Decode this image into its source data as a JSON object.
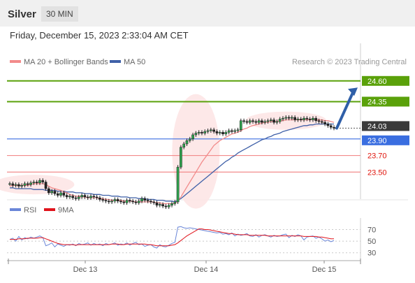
{
  "header": {
    "title": "Silver",
    "timeframe": "30 MIN"
  },
  "datetime": "Friday, December 15, 2023 2:33:04 AM CET",
  "copyright": "Research © 2023 Trading Central",
  "colors": {
    "resistance": "#5aa10a",
    "support": "#f28b8b",
    "support_text": "#e0140b",
    "ma20": "#f28b8b",
    "ma50": "#3f60a8",
    "pivot": "#3a6ee0",
    "last": "#3a3a3a",
    "arrow": "#2f5fa8",
    "candle": "#222222",
    "candle_up": "#2fa44f",
    "rsi": "#6a86d8",
    "rsi_ma": "#e0141c"
  },
  "chart_data": [
    {
      "type": "line",
      "name": "price",
      "legend": [
        {
          "name": "MA 20 + Bollinger Bands",
          "color": "#f28b8b"
        },
        {
          "name": "MA 50",
          "color": "#3f60a8"
        }
      ],
      "x_labels": [
        "Dec 13",
        "Dec 14",
        "Dec 15"
      ],
      "ylim": [
        23.3,
        24.75
      ],
      "levels": [
        {
          "label": "24.60",
          "value": 24.6,
          "role": "resistance"
        },
        {
          "label": "24.35",
          "value": 24.35,
          "role": "resistance"
        },
        {
          "label": "24.03",
          "value": 24.03,
          "role": "last"
        },
        {
          "label": "23.90",
          "value": 23.9,
          "role": "pivot"
        },
        {
          "label": "23.70",
          "value": 23.7,
          "role": "support"
        },
        {
          "label": "23.50",
          "value": 23.5,
          "role": "support"
        }
      ],
      "close_series": [
        23.36,
        23.34,
        23.35,
        23.33,
        23.34,
        23.36,
        23.35,
        23.37,
        23.38,
        23.37,
        23.4,
        23.38,
        23.3,
        23.25,
        23.27,
        23.24,
        23.22,
        23.25,
        23.22,
        23.2,
        23.21,
        23.19,
        23.18,
        23.2,
        23.22,
        23.2,
        23.19,
        23.21,
        23.2,
        23.19,
        23.17,
        23.16,
        23.15,
        23.14,
        23.15,
        23.17,
        23.15,
        23.14,
        23.13,
        23.16,
        23.15,
        23.14,
        23.13,
        23.15,
        23.18,
        23.16,
        23.15,
        23.14,
        23.13,
        23.1,
        23.11,
        23.09,
        23.08,
        23.1,
        23.12,
        23.14,
        23.56,
        23.8,
        23.84,
        23.88,
        23.9,
        23.95,
        23.97,
        23.98,
        23.97,
        23.99,
        24.0,
        24.01,
        23.99,
        23.97,
        23.98,
        23.96,
        23.98,
        24.0,
        23.99,
        24.0,
        24.01,
        24.12,
        24.11,
        24.1,
        24.12,
        24.11,
        24.1,
        24.12,
        24.1,
        24.11,
        24.12,
        24.13,
        24.1,
        24.11,
        24.14,
        24.15,
        24.16,
        24.15,
        24.16,
        24.13,
        24.14,
        24.13,
        24.15,
        24.14,
        24.13,
        24.15,
        24.12,
        24.11,
        24.1,
        24.08,
        24.06,
        24.04,
        24.03
      ],
      "ma20_series": [
        23.33,
        23.34,
        23.34,
        23.34,
        23.34,
        23.34,
        23.34,
        23.35,
        23.36,
        23.36,
        23.36,
        23.36,
        23.35,
        23.33,
        23.31,
        23.3,
        23.29,
        23.28,
        23.26,
        23.25,
        23.23,
        23.22,
        23.21,
        23.21,
        23.2,
        23.2,
        23.19,
        23.19,
        23.19,
        23.19,
        23.18,
        23.18,
        23.17,
        23.17,
        23.16,
        23.16,
        23.16,
        23.16,
        23.15,
        23.15,
        23.15,
        23.15,
        23.14,
        23.14,
        23.14,
        23.14,
        23.14,
        23.14,
        23.14,
        23.13,
        23.13,
        23.12,
        23.12,
        23.12,
        23.12,
        23.12,
        23.15,
        23.2,
        23.26,
        23.32,
        23.38,
        23.44,
        23.5,
        23.56,
        23.62,
        23.67,
        23.72,
        23.77,
        23.82,
        23.85,
        23.88,
        23.9,
        23.92,
        23.94,
        23.96,
        23.97,
        23.98,
        24.0,
        24.02,
        24.03,
        24.05,
        24.06,
        24.07,
        24.08,
        24.09,
        24.1,
        24.1,
        24.11,
        24.11,
        24.11,
        24.12,
        24.12,
        24.13,
        24.13,
        24.13,
        24.13,
        24.13,
        24.13,
        24.13,
        24.13,
        24.13,
        24.14,
        24.13,
        24.13,
        24.13,
        24.12,
        24.12,
        24.11,
        24.1
      ],
      "ma50_series": [
        23.31,
        23.31,
        23.3,
        23.3,
        23.3,
        23.3,
        23.3,
        23.3,
        23.29,
        23.29,
        23.29,
        23.29,
        23.28,
        23.28,
        23.28,
        23.28,
        23.27,
        23.27,
        23.27,
        23.26,
        23.26,
        23.26,
        23.25,
        23.25,
        23.25,
        23.24,
        23.24,
        23.24,
        23.23,
        23.23,
        23.23,
        23.22,
        23.22,
        23.22,
        23.21,
        23.21,
        23.21,
        23.2,
        23.2,
        23.2,
        23.19,
        23.19,
        23.19,
        23.18,
        23.18,
        23.18,
        23.17,
        23.17,
        23.17,
        23.16,
        23.16,
        23.16,
        23.15,
        23.15,
        23.15,
        23.14,
        23.16,
        23.18,
        23.21,
        23.24,
        23.27,
        23.3,
        23.33,
        23.36,
        23.39,
        23.42,
        23.45,
        23.48,
        23.51,
        23.54,
        23.57,
        23.6,
        23.63,
        23.65,
        23.68,
        23.7,
        23.73,
        23.75,
        23.77,
        23.79,
        23.81,
        23.83,
        23.85,
        23.87,
        23.89,
        23.9,
        23.92,
        23.93,
        23.95,
        23.96,
        23.97,
        23.99,
        24.0,
        24.01,
        24.02,
        24.03,
        24.04,
        24.05,
        24.06,
        24.06,
        24.07,
        24.07,
        24.08,
        24.08,
        24.08,
        24.08,
        24.08,
        24.08,
        24.08
      ]
    },
    {
      "type": "line",
      "name": "rsi",
      "legend": [
        {
          "name": "RSI",
          "color": "#6a86d8"
        },
        {
          "name": "9MA",
          "color": "#e0141c"
        }
      ],
      "ylim": [
        20,
        85
      ],
      "y_ticks": [
        {
          "label": "70",
          "value": 70
        },
        {
          "label": "50",
          "value": 50
        },
        {
          "label": "30",
          "value": 30
        }
      ],
      "rsi": [
        53,
        55,
        50,
        58,
        52,
        56,
        54,
        57,
        55,
        57,
        59,
        56,
        42,
        44,
        47,
        40,
        45,
        43,
        41,
        44,
        43,
        45,
        42,
        46,
        44,
        45,
        47,
        43,
        46,
        44,
        45,
        42,
        46,
        44,
        45,
        47,
        43,
        45,
        44,
        47,
        43,
        46,
        48,
        44,
        45,
        41,
        43,
        44,
        40,
        38,
        44,
        41,
        40,
        43,
        46,
        48,
        74,
        75,
        73,
        72,
        73,
        72,
        71,
        70,
        69,
        68,
        67,
        66,
        65,
        64,
        65,
        62,
        63,
        61,
        64,
        59,
        62,
        60,
        61,
        63,
        59,
        58,
        61,
        57,
        60,
        61,
        59,
        57,
        60,
        58,
        59,
        61,
        62,
        56,
        60,
        58,
        61,
        59,
        52,
        57,
        58,
        59,
        55,
        57,
        54,
        50,
        52,
        49,
        51
      ],
      "rsi_ma": [
        53,
        53,
        53,
        54,
        54,
        54,
        55,
        55,
        55,
        55,
        56,
        56,
        54,
        52,
        50,
        48,
        46,
        45,
        44,
        44,
        44,
        44,
        43,
        44,
        44,
        44,
        44,
        44,
        44,
        44,
        44,
        44,
        44,
        44,
        45,
        45,
        45,
        44,
        44,
        45,
        45,
        45,
        45,
        45,
        45,
        45,
        44,
        44,
        43,
        42,
        42,
        42,
        42,
        42,
        43,
        44,
        47,
        51,
        55,
        59,
        62,
        65,
        68,
        71,
        71,
        70,
        70,
        69,
        68,
        67,
        66,
        65,
        64,
        63,
        63,
        62,
        61,
        61,
        61,
        61,
        60,
        60,
        60,
        60,
        60,
        60,
        59,
        59,
        59,
        59,
        59,
        59,
        59,
        59,
        59,
        59,
        59,
        59,
        58,
        58,
        58,
        58,
        58,
        57,
        57,
        56,
        55,
        54,
        54
      ]
    }
  ]
}
